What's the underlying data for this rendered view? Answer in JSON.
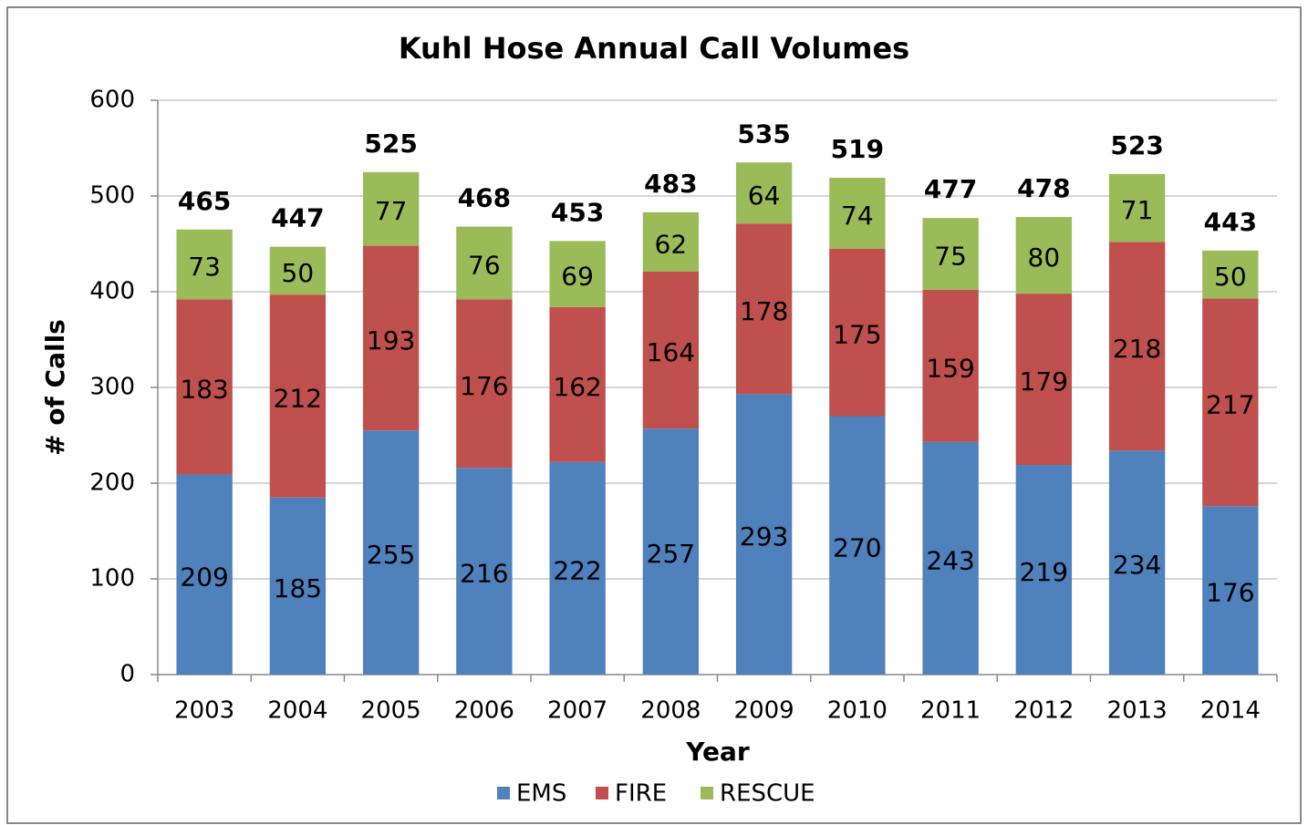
{
  "chart_data": {
    "type": "stacked_bar",
    "title": "Kuhl Hose Annual Call Volumes",
    "x_label": "Year",
    "y_label": "# of Calls",
    "categories": [
      "2003",
      "2004",
      "2005",
      "2006",
      "2007",
      "2008",
      "2009",
      "2010",
      "2011",
      "2012",
      "2013",
      "2014"
    ],
    "series": [
      {
        "name": "EMS",
        "color": "#4f81bd",
        "values": [
          209,
          185,
          255,
          216,
          222,
          257,
          293,
          270,
          243,
          219,
          234,
          176
        ]
      },
      {
        "name": "FIRE",
        "color": "#c0504d",
        "values": [
          183,
          212,
          193,
          176,
          162,
          164,
          178,
          175,
          159,
          179,
          218,
          217
        ]
      },
      {
        "name": "RESCUE",
        "color": "#9bbb59",
        "values": [
          73,
          50,
          77,
          76,
          69,
          62,
          64,
          74,
          75,
          80,
          71,
          50
        ]
      }
    ],
    "totals": [
      465,
      447,
      525,
      468,
      453,
      483,
      535,
      519,
      477,
      478,
      523,
      443
    ],
    "ylim": [
      0,
      600
    ],
    "yticks": [
      0,
      100,
      200,
      300,
      400,
      500,
      600
    ],
    "grid": true,
    "legend": "bottom"
  }
}
